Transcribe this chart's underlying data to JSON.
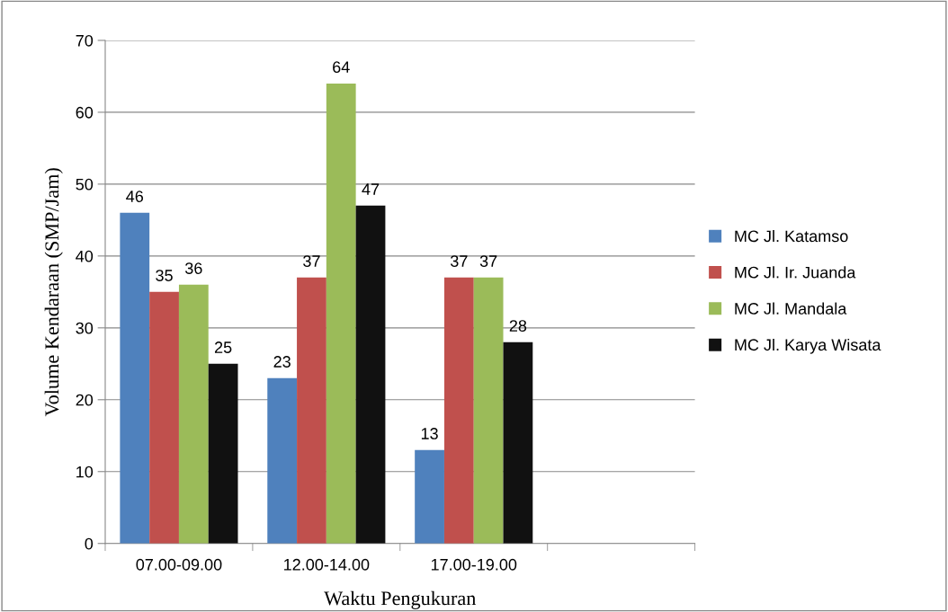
{
  "chart_data": {
    "type": "bar",
    "xlabel": "Waktu Pengukuran",
    "ylabel": "Volume Kendaraan (SMP/Jam)",
    "categories": [
      "07.00-09.00",
      "12.00-14.00",
      "17.00-19.00",
      null
    ],
    "series": [
      {
        "name": "MC Jl. Katamso",
        "color": "#4f81bd",
        "values": [
          46,
          23,
          13,
          null
        ]
      },
      {
        "name": "MC Jl. Ir. Juanda",
        "color": "#c0504d",
        "values": [
          35,
          37,
          37,
          null
        ]
      },
      {
        "name": "MC Jl. Mandala",
        "color": "#9bbb59",
        "values": [
          36,
          64,
          37,
          null
        ]
      },
      {
        "name": "MC Jl. Karya Wisata",
        "color": "#111111",
        "values": [
          25,
          47,
          28,
          null
        ]
      }
    ],
    "ylim": [
      0,
      70
    ],
    "yticks": [
      0,
      10,
      20,
      30,
      40,
      50,
      60,
      70
    ],
    "grid": "y",
    "legend": "right",
    "data_labels": true
  }
}
